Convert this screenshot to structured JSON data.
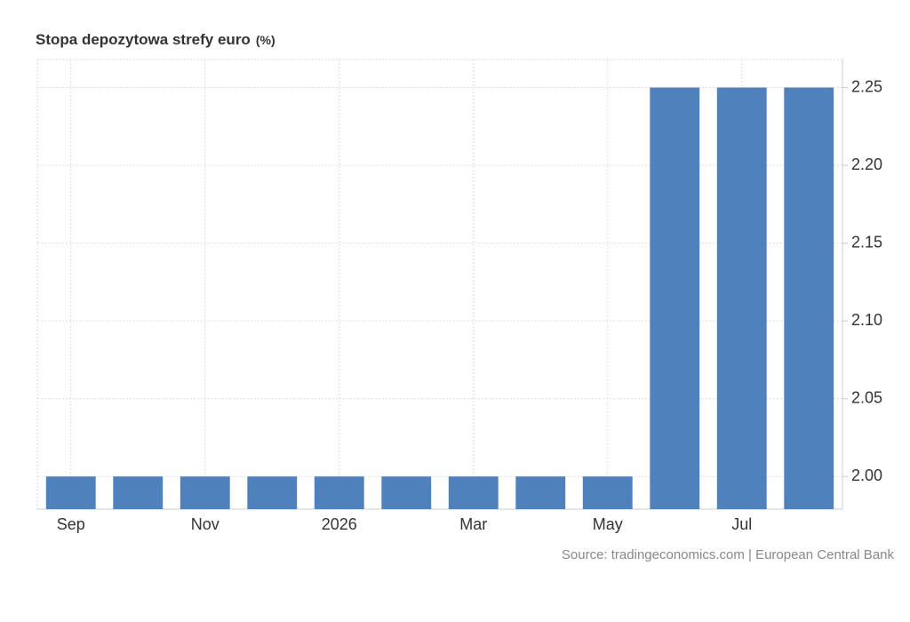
{
  "chart_data": {
    "type": "bar",
    "title": "Stopa depozytowa strefy euro",
    "unit": "(%)",
    "categories": [
      "Sep",
      null,
      "Nov",
      null,
      "2026",
      null,
      "Mar",
      null,
      "May",
      null,
      "Jul",
      null
    ],
    "values": [
      2,
      2,
      2,
      2,
      2,
      2,
      2,
      2,
      2,
      2.25,
      2.25,
      2.25
    ],
    "color": "#4f81bd",
    "ylim": [
      1.979,
      2.268
    ],
    "yticks": [
      {
        "value": 2,
        "label": "2.00"
      },
      2.05,
      {
        "value": 2.1,
        "label": "2.10"
      },
      2.15,
      {
        "value": 2.2,
        "label": "2.20"
      },
      2.25
    ],
    "grid": true,
    "source": "Source: tradingeconomics.com | European Central Bank"
  }
}
